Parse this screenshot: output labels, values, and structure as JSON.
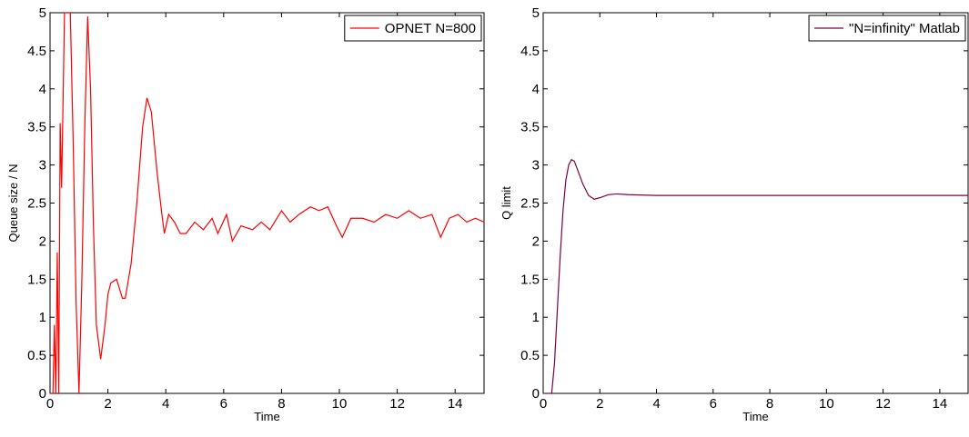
{
  "chart_data": [
    {
      "type": "line",
      "xlabel": "Time",
      "ylabel": "Queue size / N",
      "x": [
        0,
        0.1,
        0.15,
        0.2,
        0.25,
        0.3,
        0.35,
        0.4,
        0.5,
        0.6,
        0.7,
        0.8,
        0.9,
        1.0,
        1.1,
        1.2,
        1.3,
        1.4,
        1.5,
        1.6,
        1.75,
        1.9,
        2.0,
        2.1,
        2.3,
        2.5,
        2.6,
        2.8,
        3.0,
        3.2,
        3.35,
        3.5,
        3.7,
        3.85,
        3.95,
        4.1,
        4.3,
        4.5,
        4.7,
        5.0,
        5.3,
        5.6,
        5.8,
        6.1,
        6.3,
        6.6,
        7.0,
        7.3,
        7.6,
        8.0,
        8.3,
        8.6,
        9.0,
        9.3,
        9.6,
        9.9,
        10.1,
        10.4,
        10.8,
        11.2,
        11.6,
        12.0,
        12.4,
        12.8,
        13.2,
        13.5,
        13.8,
        14.1,
        14.4,
        14.7,
        15.0
      ],
      "series": [
        {
          "name": "OPNET N=800",
          "color": "#ff0000",
          "values": [
            0,
            0,
            0.9,
            0,
            1.85,
            0,
            3.55,
            2.7,
            5,
            5,
            5,
            3.3,
            1.2,
            0,
            1.5,
            3.5,
            4.95,
            4.0,
            2.2,
            0.9,
            0.45,
            0.9,
            1.3,
            1.45,
            1.5,
            1.25,
            1.25,
            1.7,
            2.5,
            3.5,
            3.88,
            3.7,
            2.9,
            2.4,
            2.1,
            2.35,
            2.25,
            2.1,
            2.1,
            2.25,
            2.15,
            2.3,
            2.1,
            2.35,
            2.0,
            2.2,
            2.15,
            2.25,
            2.15,
            2.4,
            2.25,
            2.35,
            2.45,
            2.4,
            2.45,
            2.2,
            2.05,
            2.3,
            2.3,
            2.25,
            2.35,
            2.3,
            2.4,
            2.3,
            2.35,
            2.05,
            2.3,
            2.35,
            2.25,
            2.3,
            2.25
          ]
        }
      ],
      "xlim": [
        0,
        15
      ],
      "ylim": [
        0,
        5
      ],
      "xticks": [
        0,
        2,
        4,
        6,
        8,
        10,
        12,
        14
      ],
      "yticks": [
        0,
        0.5,
        1,
        1.5,
        2,
        2.5,
        3,
        3.5,
        4,
        4.5,
        5
      ],
      "legend": "upper right"
    },
    {
      "type": "line",
      "xlabel": "Time",
      "ylabel": "Q limit",
      "x": [
        0,
        0.3,
        0.4,
        0.5,
        0.6,
        0.7,
        0.8,
        0.9,
        1.0,
        1.1,
        1.2,
        1.4,
        1.6,
        1.8,
        2.0,
        2.3,
        2.6,
        3.0,
        4,
        6,
        8,
        10,
        12,
        15
      ],
      "series": [
        {
          "name": "\"N=infinity\" Matlab",
          "color": "#800040",
          "values": [
            0,
            0,
            0.4,
            1.1,
            1.8,
            2.4,
            2.8,
            3.0,
            3.07,
            3.05,
            2.95,
            2.75,
            2.6,
            2.55,
            2.57,
            2.61,
            2.62,
            2.61,
            2.6,
            2.6,
            2.6,
            2.6,
            2.6,
            2.6
          ]
        }
      ],
      "xlim": [
        0,
        15
      ],
      "ylim": [
        0,
        5
      ],
      "xticks": [
        0,
        2,
        4,
        6,
        8,
        10,
        12,
        14
      ],
      "yticks": [
        0,
        0.5,
        1,
        1.5,
        2,
        2.5,
        3,
        3.5,
        4,
        4.5,
        5
      ],
      "legend": "upper right"
    }
  ]
}
